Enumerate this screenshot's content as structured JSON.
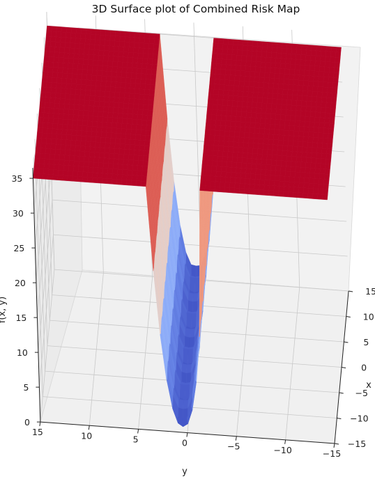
{
  "chart_data": {
    "type": "surface3d",
    "title": "3D Surface plot of Combined Risk Map",
    "xlabel": "x",
    "ylabel": "y",
    "zlabel": "f(x, y)",
    "xlim": [
      -15,
      15
    ],
    "ylim": [
      -15,
      15
    ],
    "zlim": [
      0,
      35
    ],
    "x_ticks": [
      "15",
      "10",
      "5",
      "0",
      "−5",
      "−10",
      "−15"
    ],
    "y_ticks": [
      "15",
      "10",
      "5",
      "0",
      "−5",
      "−10",
      "−15"
    ],
    "z_ticks": [
      "0",
      "5",
      "10",
      "15",
      "20",
      "25",
      "30",
      "35"
    ],
    "grid": true,
    "colormap": "coolwarm",
    "description_values": {
      "high_plateau_value": 35,
      "valley_min_value": 0,
      "plateau_y_ranges": [
        [
          -15,
          -2
        ],
        [
          5,
          15
        ]
      ],
      "valley_y_center": 0.5
    },
    "colors": {
      "plateau": "#b40426",
      "peak_light": "#f4c5ad",
      "mid": "#dddcdc",
      "valley_light": "#aac7fd",
      "valley_dark": "#3b4cc0",
      "pane": "#f2f2f2",
      "grid": "#c8c8c8"
    }
  }
}
